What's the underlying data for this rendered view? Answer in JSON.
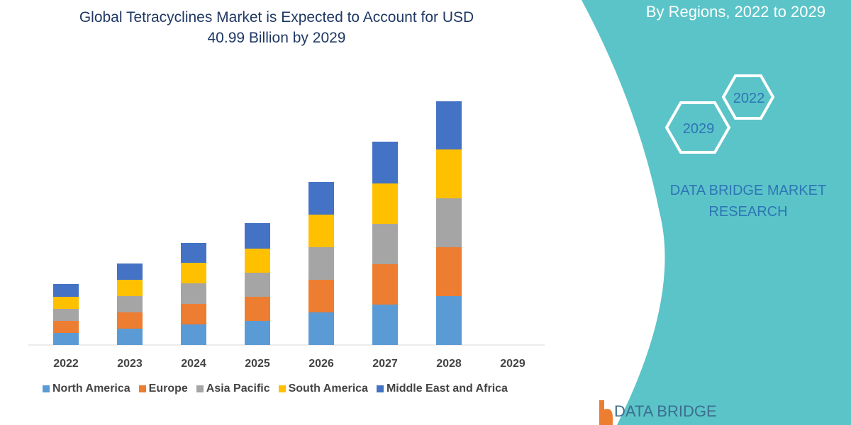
{
  "chart_data": {
    "type": "bar",
    "stacked": true,
    "title": "Global Tetracyclines Market is Expected to Account for USD 40.99 Billion by 2029",
    "categories": [
      "2022",
      "2023",
      "2024",
      "2025",
      "2026",
      "2027",
      "2028",
      "2029"
    ],
    "series": [
      {
        "name": "North America",
        "color": "#5b9bd5",
        "values": [
          17,
          23,
          29,
          34,
          46,
          57,
          69,
          0
        ]
      },
      {
        "name": "Europe",
        "color": "#ed7d31",
        "values": [
          17,
          23,
          29,
          34,
          46,
          57,
          69,
          0
        ]
      },
      {
        "name": "Asia Pacific",
        "color": "#a5a5a5",
        "values": [
          17,
          23,
          29,
          34,
          46,
          57,
          69,
          0
        ]
      },
      {
        "name": "South America",
        "color": "#ffc000",
        "values": [
          17,
          23,
          29,
          34,
          46,
          57,
          69,
          0
        ]
      },
      {
        "name": "Middle East and Africa",
        "color": "#4472c4",
        "values": [
          18,
          23,
          28,
          36,
          46,
          59,
          68,
          0
        ]
      }
    ],
    "legend": "bottom",
    "grid": false,
    "yaxis_shown": false
  },
  "header": {
    "title_line1": "Global Tetracyclines Market is Expected to Account for USD",
    "title_line2": "40.99 Billion by 2029",
    "subtitle": "By Regions, 2022 to 2029"
  },
  "side": {
    "hex_a": "2022",
    "hex_b": "2029",
    "brand_line1": "DATA BRIDGE MARKET",
    "brand_line2": "RESEARCH",
    "logo_text": "DATA BRIDGE",
    "panel_color": "#5bc4c8"
  }
}
